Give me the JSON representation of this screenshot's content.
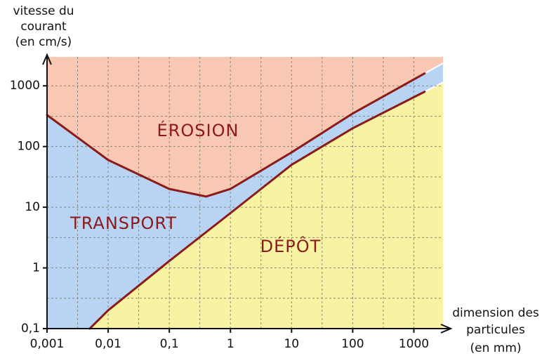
{
  "chart_data": {
    "type": "line",
    "y_label": [
      "vitesse du",
      "courant",
      "(en cm/s)"
    ],
    "x_label": [
      "dimension des",
      "particules",
      "(en mm)"
    ],
    "log_x": true,
    "log_y": true,
    "grid": true,
    "xlim": [
      0.001,
      3000
    ],
    "ylim": [
      0.1,
      3000
    ],
    "xticks": [
      {
        "value": 0.001,
        "label": "0,001"
      },
      {
        "value": 0.01,
        "label": "0,01"
      },
      {
        "value": 0.1,
        "label": "0,1"
      },
      1,
      10,
      100,
      1000
    ],
    "yticks": [
      {
        "value": 0.1,
        "label": "0,1"
      },
      1,
      10,
      100,
      1000
    ],
    "xgrid_minor": [
      0.00316,
      0.0316,
      0.316,
      3.16,
      31.6,
      316
    ],
    "ygrid_minor": [
      0.316,
      3.16,
      31.6,
      316
    ],
    "regions": [
      {
        "name": "ÉROSION",
        "color": "#f9c8b2"
      },
      {
        "name": "TRANSPORT",
        "color": "#b9d3f3"
      },
      {
        "name": "DÉPÔT",
        "color": "#f8f3a3"
      }
    ],
    "curves": [
      {
        "color": "#8b1a1a",
        "x": [
          0.001,
          0.01,
          0.1,
          0.4,
          1,
          10,
          100,
          1500
        ],
        "y": [
          330,
          60,
          20,
          15,
          20,
          80,
          350,
          1600
        ]
      },
      {
        "color": "#8b1a1a",
        "x": [
          0.005,
          0.01,
          0.1,
          1,
          10,
          100,
          1500
        ],
        "y": [
          0.1,
          0.2,
          1.3,
          8,
          50,
          200,
          800
        ]
      }
    ]
  }
}
